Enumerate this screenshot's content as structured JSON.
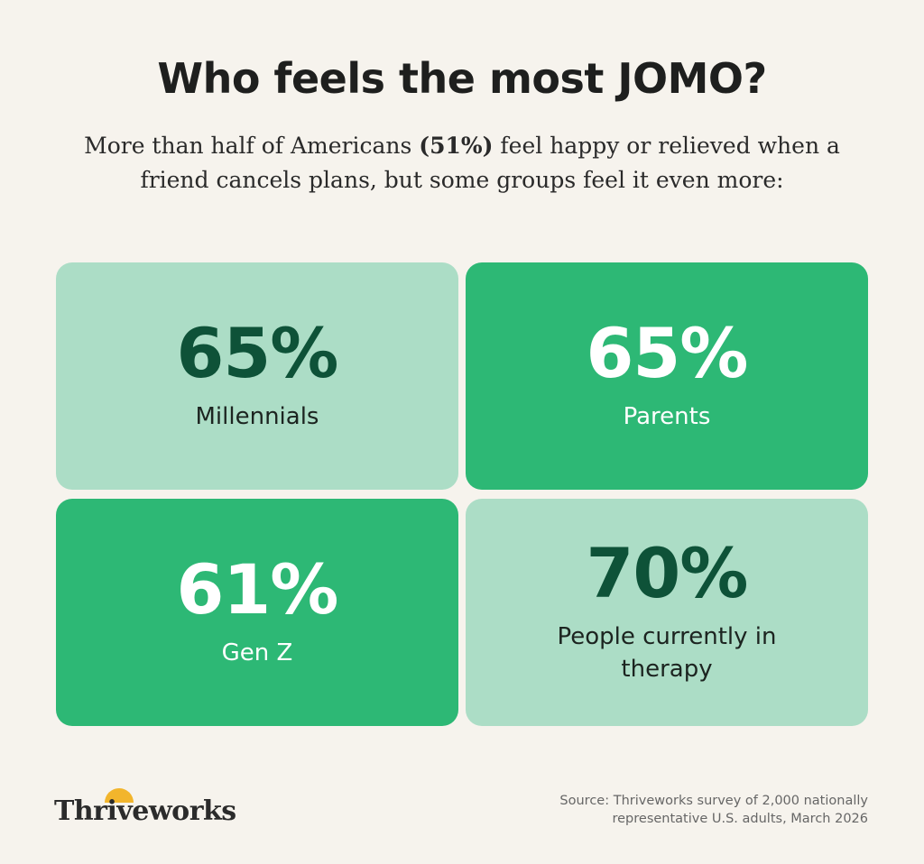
{
  "title": "Who feels the most JOMO?",
  "subtitle": {
    "before": "More than half of Americans ",
    "highlight": "(51%)",
    "after": " feel happy or relieved when a friend cancels plans, but some groups feel it even more:"
  },
  "stats": [
    {
      "value": "65%",
      "label": "Millennials"
    },
    {
      "value": "65%",
      "label": "Parents"
    },
    {
      "value": "61%",
      "label": "Gen Z"
    },
    {
      "value": "70%",
      "label": "People currently in therapy"
    }
  ],
  "colors": {
    "background": "#f6f3ed",
    "card_light": "#acddc6",
    "card_dark": "#2db875",
    "value_dark_green": "#0e5238",
    "sun_yellow": "#f2b52c"
  },
  "logo": {
    "text": "Thriveworks",
    "icon": "sun-icon"
  },
  "source": {
    "line1": "Source: Thriveworks survey of 2,000 nationally",
    "line2": "representative U.S. adults, March 2026"
  }
}
